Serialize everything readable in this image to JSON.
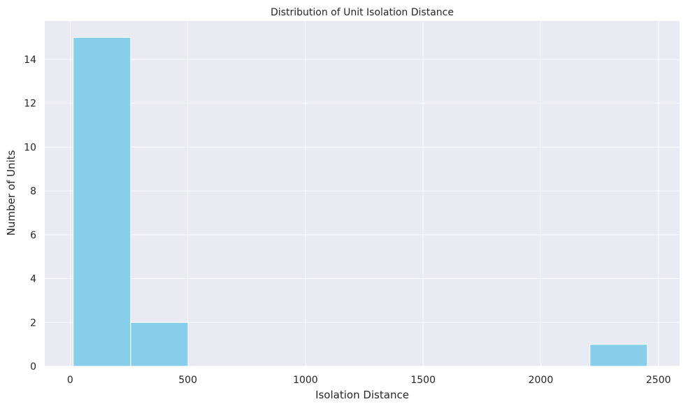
{
  "chart_data": {
    "type": "bar",
    "title": "Distribution of Unit Isolation Distance",
    "xlabel": "Isolation Distance",
    "ylabel": "Number of Units",
    "xlim": [
      -108,
      2590
    ],
    "ylim": [
      0,
      15.75
    ],
    "x_ticks": [
      0,
      500,
      1000,
      1500,
      2000,
      2500
    ],
    "y_ticks": [
      0,
      2,
      4,
      6,
      8,
      10,
      12,
      14
    ],
    "grid": true,
    "bins": [
      {
        "x0": 13,
        "x1": 257,
        "count": 15
      },
      {
        "x0": 257,
        "x1": 501,
        "count": 2
      },
      {
        "x0": 501,
        "x1": 745,
        "count": 0
      },
      {
        "x0": 745,
        "x1": 989,
        "count": 0
      },
      {
        "x0": 989,
        "x1": 1233,
        "count": 0
      },
      {
        "x0": 1233,
        "x1": 1477,
        "count": 0
      },
      {
        "x0": 1477,
        "x1": 1721,
        "count": 0
      },
      {
        "x0": 1721,
        "x1": 1965,
        "count": 0
      },
      {
        "x0": 1965,
        "x1": 2209,
        "count": 0
      },
      {
        "x0": 2209,
        "x1": 2453,
        "count": 1
      }
    ],
    "colors": {
      "bar": "#87ceeb",
      "bar_edge": "#ffffff",
      "background": "#eaeaf2",
      "grid": "#ffffff"
    }
  }
}
